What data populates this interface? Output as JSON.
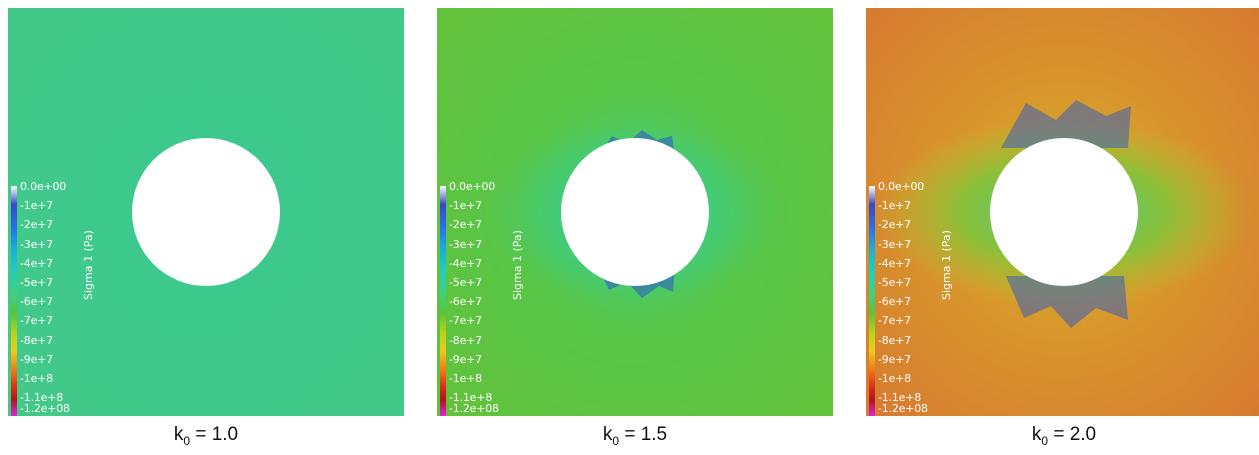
{
  "colorbar": {
    "title": "Sigma 1 (Pa)",
    "labels": [
      "0.0e+00",
      "-1e+7",
      "-2e+7",
      "-3e+7",
      "-4e+7",
      "-5e+7",
      "-6e+7",
      "-7e+7",
      "-8e+7",
      "-9e+7",
      "-1e+8",
      "-1.1e+8",
      "-1.2e+08"
    ],
    "colors": [
      "#ffffff",
      "#2a3cc8",
      "#2a64e8",
      "#1aa6d8",
      "#22d0b8",
      "#3fcf7a",
      "#5ac23a",
      "#9ecf1c",
      "#e6d31a",
      "#f08a18",
      "#d82a18",
      "#b0161e",
      "#e020d8"
    ]
  },
  "panels": [
    {
      "k_symbol": "k",
      "k_sub": "0",
      "k_value": " = 1.0",
      "field_color": "#3ec98a"
    },
    {
      "k_symbol": "k",
      "k_sub": "0",
      "k_value": " = 1.5",
      "field_color": "#58c44a"
    },
    {
      "k_symbol": "k",
      "k_sub": "0",
      "k_value": " = 2.0",
      "field_color": "#d9822e"
    }
  ]
}
